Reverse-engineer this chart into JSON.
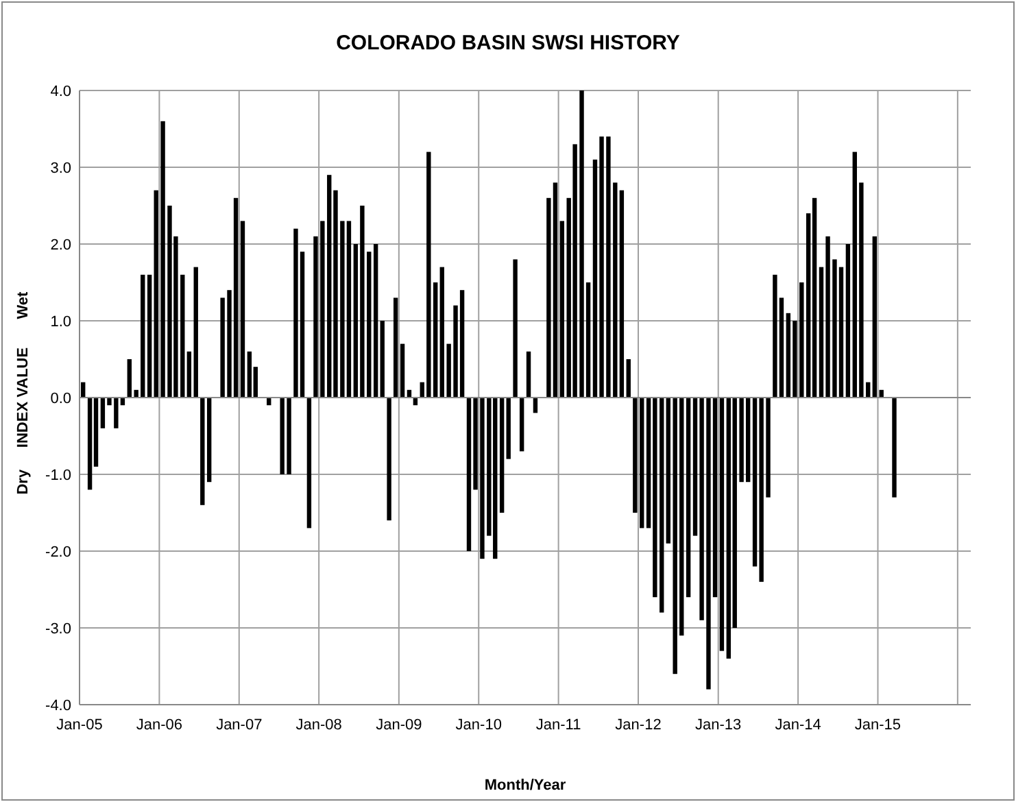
{
  "chart_data": {
    "type": "bar",
    "title": "COLORADO BASIN SWSI HISTORY",
    "xlabel": "Month/Year",
    "ylabel": "INDEX VALUE",
    "annotations": [
      "Dry",
      "Wet"
    ],
    "color": "#000000",
    "x": [
      "2005-01",
      "2005-02",
      "2005-03",
      "2005-04",
      "2005-05",
      "2005-06",
      "2005-07",
      "2005-08",
      "2005-09",
      "2005-10",
      "2005-11",
      "2005-12",
      "2006-01",
      "2006-02",
      "2006-03",
      "2006-04",
      "2006-05",
      "2006-06",
      "2006-07",
      "2006-08",
      "2006-09",
      "2006-10",
      "2006-11",
      "2006-12",
      "2007-01",
      "2007-02",
      "2007-03",
      "2007-04",
      "2007-05",
      "2007-06",
      "2007-07",
      "2007-08",
      "2007-09",
      "2007-10",
      "2007-11",
      "2007-12",
      "2008-01",
      "2008-02",
      "2008-03",
      "2008-04",
      "2008-05",
      "2008-06",
      "2008-07",
      "2008-08",
      "2008-09",
      "2008-10",
      "2008-11",
      "2008-12",
      "2009-01",
      "2009-02",
      "2009-03",
      "2009-04",
      "2009-05",
      "2009-06",
      "2009-07",
      "2009-08",
      "2009-09",
      "2009-10",
      "2009-11",
      "2009-12",
      "2010-01",
      "2010-02",
      "2010-03",
      "2010-04",
      "2010-05",
      "2010-06",
      "2010-07",
      "2010-08",
      "2010-09",
      "2010-10",
      "2010-11",
      "2010-12",
      "2011-01",
      "2011-02",
      "2011-03",
      "2011-04",
      "2011-05",
      "2011-06",
      "2011-07",
      "2011-08",
      "2011-09",
      "2011-10",
      "2011-11",
      "2011-12",
      "2012-01",
      "2012-02",
      "2012-03",
      "2012-04",
      "2012-05",
      "2012-06",
      "2012-07",
      "2012-08",
      "2012-09",
      "2012-10",
      "2012-11",
      "2012-12",
      "2013-01",
      "2013-02",
      "2013-03",
      "2013-04",
      "2013-05",
      "2013-06",
      "2013-07",
      "2013-08",
      "2013-09",
      "2013-10",
      "2013-11",
      "2013-12",
      "2014-01",
      "2014-02",
      "2014-03",
      "2014-04",
      "2014-05",
      "2014-06",
      "2014-07",
      "2014-08",
      "2014-09",
      "2014-10",
      "2014-11",
      "2014-12",
      "2015-01",
      "2015-02",
      "2015-03"
    ],
    "values": [
      0.2,
      -1.2,
      -0.9,
      -0.4,
      -0.1,
      -0.4,
      -0.1,
      0.5,
      0.1,
      1.6,
      1.6,
      2.7,
      3.6,
      2.5,
      2.1,
      1.6,
      0.6,
      1.7,
      -1.4,
      -1.1,
      0,
      1.3,
      1.4,
      2.6,
      2.3,
      0.6,
      0.4,
      0,
      -0.1,
      0,
      -1.0,
      -1.0,
      2.2,
      1.9,
      -1.7,
      2.1,
      2.3,
      2.9,
      2.7,
      2.3,
      2.3,
      2.0,
      2.5,
      1.9,
      2.0,
      1.0,
      -1.6,
      1.3,
      0.7,
      0.1,
      -0.1,
      0.2,
      3.2,
      1.5,
      1.7,
      0.7,
      1.2,
      1.4,
      -2.0,
      -1.2,
      -2.1,
      -1.8,
      -2.1,
      -1.5,
      -0.8,
      1.8,
      -0.7,
      0.6,
      -0.2,
      0,
      2.6,
      2.8,
      2.3,
      2.6,
      3.3,
      4.0,
      1.5,
      3.1,
      3.4,
      3.4,
      2.8,
      2.7,
      0.5,
      -1.5,
      -1.7,
      -1.7,
      -2.6,
      -2.8,
      -1.9,
      -3.6,
      -3.1,
      -2.6,
      -1.8,
      -2.9,
      -3.8,
      -2.6,
      -3.3,
      -3.4,
      -3.0,
      -1.1,
      -1.1,
      -2.2,
      -2.4,
      -1.3,
      1.6,
      1.3,
      1.1,
      1.0,
      1.5,
      2.4,
      2.6,
      1.7,
      2.1,
      1.8,
      1.7,
      2.0,
      3.2,
      2.8,
      0.2,
      2.1,
      0.1,
      0,
      -1.3
    ],
    "xlim": [
      "2005-01",
      "2016-03"
    ],
    "xticks": [
      {
        "value": "2005-01",
        "label": "Jan-05"
      },
      {
        "value": "2006-01",
        "label": "Jan-06"
      },
      {
        "value": "2007-01",
        "label": "Jan-07"
      },
      {
        "value": "2008-01",
        "label": "Jan-08"
      },
      {
        "value": "2009-01",
        "label": "Jan-09"
      },
      {
        "value": "2010-01",
        "label": "Jan-10"
      },
      {
        "value": "2011-01",
        "label": "Jan-11"
      },
      {
        "value": "2012-01",
        "label": "Jan-12"
      },
      {
        "value": "2013-01",
        "label": "Jan-13"
      },
      {
        "value": "2014-01",
        "label": "Jan-14"
      },
      {
        "value": "2015-01",
        "label": "Jan-15"
      },
      {
        "value": "2016-01",
        "label": null
      }
    ],
    "ylim": [
      -4,
      4
    ],
    "yticks": [
      {
        "value": 4,
        "label": "4.0"
      },
      {
        "value": 3,
        "label": "3.0"
      },
      {
        "value": 2,
        "label": "2.0"
      },
      {
        "value": 1,
        "label": "1.0"
      },
      {
        "value": 0,
        "label": "0.0"
      },
      {
        "value": -1,
        "label": "-1.0"
      },
      {
        "value": -2,
        "label": "-2.0"
      },
      {
        "value": -3,
        "label": "-3.0"
      },
      {
        "value": -4,
        "label": "-4.0"
      }
    ],
    "grid": true
  }
}
